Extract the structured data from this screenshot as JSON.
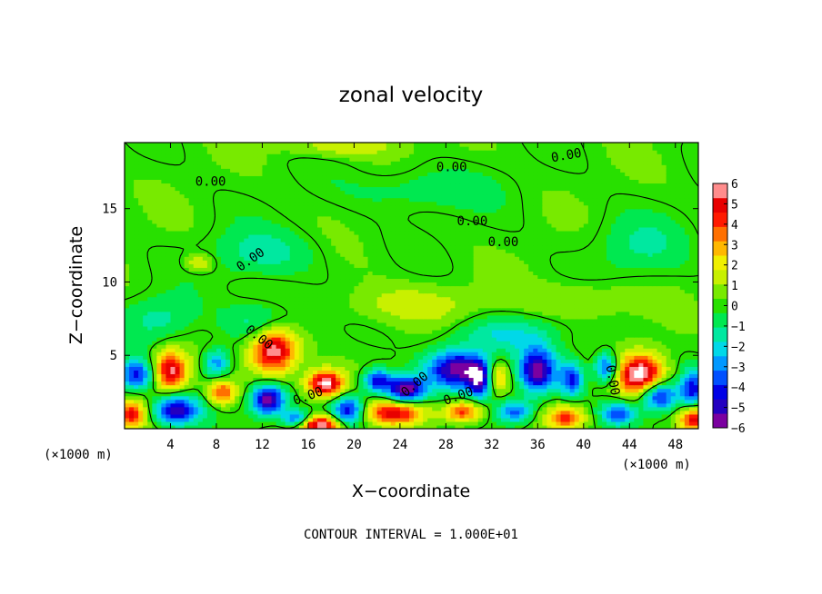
{
  "chart_data": {
    "type": "heatmap",
    "title": "zonal velocity",
    "xlabel": "X−coordinate",
    "ylabel": "Z−coordinate",
    "x_units_left": "(×1000 m)",
    "x_units_right": "(×1000 m)",
    "footer": "CONTOUR INTERVAL = 1.000E+01",
    "xlim": [
      0,
      50
    ],
    "ylim": [
      0,
      19.5
    ],
    "x_ticks": [
      4,
      8,
      12,
      16,
      20,
      24,
      28,
      32,
      36,
      40,
      44,
      48
    ],
    "x_tick_labels": [
      "4",
      "8",
      "12",
      "16",
      "20",
      "24",
      "28",
      "32",
      "36",
      "40",
      "44",
      "48"
    ],
    "y_ticks": [
      5,
      10,
      15
    ],
    "y_tick_labels": [
      "5",
      "10",
      "15"
    ],
    "colorbar": {
      "min": -6,
      "max": 6,
      "ticks": [
        6,
        5,
        4,
        3,
        2,
        1,
        0,
        -1,
        -2,
        -3,
        -4,
        -5,
        -6
      ],
      "tick_labels": [
        "6",
        "5",
        "4",
        "3",
        "2",
        "1",
        "0",
        "−1",
        "−2",
        "−3",
        "−4",
        "−5",
        "−6"
      ],
      "colors": [
        "#7b00a0",
        "#2400c0",
        "#0000e6",
        "#0050ff",
        "#0098ff",
        "#00d8e8",
        "#00e8a0",
        "#00e850",
        "#28e000",
        "#78ea00",
        "#c8f000",
        "#f0f000",
        "#ffb800",
        "#ff7000",
        "#ff1a00",
        "#e80000",
        "#ff8c8c"
      ]
    },
    "contour_labels": [
      {
        "text": "0.00",
        "x": 7.5,
        "z": 16.8,
        "angle": 0
      },
      {
        "text": "0.00",
        "x": 28.5,
        "z": 17.8,
        "angle": 0
      },
      {
        "text": "0.00",
        "x": 38.5,
        "z": 18.6,
        "angle": 10
      },
      {
        "text": "0.00",
        "x": 30.3,
        "z": 14.1,
        "angle": 0
      },
      {
        "text": "0.00",
        "x": 33.0,
        "z": 12.7,
        "angle": 0
      },
      {
        "text": "0.00",
        "x": 11.0,
        "z": 11.5,
        "angle": 35
      },
      {
        "text": "0.00",
        "x": 11.7,
        "z": 6.2,
        "angle": -38
      },
      {
        "text": "0.00",
        "x": 16.0,
        "z": 2.2,
        "angle": 20
      },
      {
        "text": "0.00",
        "x": 25.3,
        "z": 3.0,
        "angle": 40
      },
      {
        "text": "0.00",
        "x": 29.1,
        "z": 2.2,
        "angle": 20
      },
      {
        "text": "0.00",
        "x": 42.5,
        "z": 3.3,
        "angle": -80
      }
    ],
    "blobs": [
      {
        "x": 4.0,
        "z": 4.0,
        "rx": 1.4,
        "rz": 1.3,
        "v": 5.6
      },
      {
        "x": 13.0,
        "z": 5.4,
        "rx": 2.0,
        "rz": 1.6,
        "v": 6.2
      },
      {
        "x": 17.5,
        "z": 3.1,
        "rx": 1.6,
        "rz": 0.9,
        "v": 6.5
      },
      {
        "x": 45.0,
        "z": 3.7,
        "rx": 2.0,
        "rz": 1.4,
        "v": 6.5
      },
      {
        "x": 23.5,
        "z": 1.1,
        "rx": 2.6,
        "rz": 0.8,
        "v": 5.0
      },
      {
        "x": 29.5,
        "z": 1.2,
        "rx": 1.6,
        "rz": 0.7,
        "v": 4.5
      },
      {
        "x": 17.0,
        "z": 0.3,
        "rx": 1.8,
        "rz": 0.6,
        "v": 6.3
      },
      {
        "x": 32.5,
        "z": 3.6,
        "rx": 1.0,
        "rz": 1.0,
        "v": 3.5
      },
      {
        "x": 38.5,
        "z": 0.8,
        "rx": 1.6,
        "rz": 0.8,
        "v": 4.0
      },
      {
        "x": 0.6,
        "z": 1.0,
        "rx": 1.2,
        "rz": 0.9,
        "v": 4.5
      },
      {
        "x": 8.5,
        "z": 2.5,
        "rx": 1.2,
        "rz": 0.8,
        "v": 4.0
      },
      {
        "x": 49.6,
        "z": 0.7,
        "rx": 1.2,
        "rz": 0.8,
        "v": 5.0
      },
      {
        "x": 12.5,
        "z": 2.0,
        "rx": 1.4,
        "rz": 1.0,
        "v": -6.2
      },
      {
        "x": 24.5,
        "z": 2.7,
        "rx": 1.6,
        "rz": 0.9,
        "v": -6.4
      },
      {
        "x": 29.0,
        "z": 4.1,
        "rx": 2.6,
        "rz": 1.3,
        "v": -6.0
      },
      {
        "x": 36.0,
        "z": 4.0,
        "rx": 1.6,
        "rz": 1.5,
        "v": -5.8
      },
      {
        "x": 46.5,
        "z": 2.3,
        "rx": 1.6,
        "rz": 1.0,
        "v": -5.2
      },
      {
        "x": 4.5,
        "z": 1.3,
        "rx": 2.0,
        "rz": 1.0,
        "v": -5.3
      },
      {
        "x": 1.0,
        "z": 3.7,
        "rx": 1.5,
        "rz": 1.0,
        "v": -4.4
      },
      {
        "x": 8.0,
        "z": 4.5,
        "rx": 1.2,
        "rz": 1.0,
        "v": -3.3
      },
      {
        "x": 19.5,
        "z": 1.3,
        "rx": 1.4,
        "rz": 1.0,
        "v": -5.0
      },
      {
        "x": 22.0,
        "z": 3.3,
        "rx": 1.2,
        "rz": 0.8,
        "v": -4.8
      },
      {
        "x": 31.0,
        "z": 3.3,
        "rx": 1.0,
        "rz": 1.2,
        "v": -4.8
      },
      {
        "x": 39.0,
        "z": 3.4,
        "rx": 1.0,
        "rz": 1.2,
        "v": -4.3
      },
      {
        "x": 42.0,
        "z": 4.2,
        "rx": 1.0,
        "rz": 1.0,
        "v": -4.5
      },
      {
        "x": 49.5,
        "z": 2.8,
        "rx": 1.0,
        "rz": 1.2,
        "v": -4.4
      },
      {
        "x": 34.0,
        "z": 1.2,
        "rx": 1.5,
        "rz": 0.8,
        "v": -3.8
      },
      {
        "x": 43.0,
        "z": 1.1,
        "rx": 1.5,
        "rz": 0.8,
        "v": -3.8
      },
      {
        "x": 15.0,
        "z": 0.7,
        "rx": 1.2,
        "rz": 0.6,
        "v": -4.4
      },
      {
        "x": 12.0,
        "z": 7.2,
        "rx": 3.0,
        "rz": 1.4,
        "v": -2.0
      },
      {
        "x": 33.0,
        "z": 6.5,
        "rx": 4.5,
        "rz": 1.2,
        "v": -1.8
      },
      {
        "x": 3.0,
        "z": 7.5,
        "rx": 3.0,
        "rz": 1.5,
        "v": -1.5
      },
      {
        "x": 12.0,
        "z": 12.0,
        "rx": 4.5,
        "rz": 1.6,
        "v": -1.5
      },
      {
        "x": 45.0,
        "z": 12.5,
        "rx": 4.0,
        "rz": 2.0,
        "v": -1.2
      },
      {
        "x": 25.0,
        "z": 8.5,
        "rx": 6.0,
        "rz": 1.3,
        "v": 1.4
      },
      {
        "x": 40.0,
        "z": 8.8,
        "rx": 5.0,
        "rz": 1.2,
        "v": 1.1
      },
      {
        "x": 19.0,
        "z": 19.3,
        "rx": 5.0,
        "rz": 0.7,
        "v": 1.6
      },
      {
        "x": 6.5,
        "z": 11.3,
        "rx": 1.2,
        "rz": 0.6,
        "v": 2.0
      },
      {
        "x": 26.0,
        "z": 16.3,
        "rx": 6.0,
        "rz": 1.4,
        "v": -1.1
      }
    ]
  }
}
